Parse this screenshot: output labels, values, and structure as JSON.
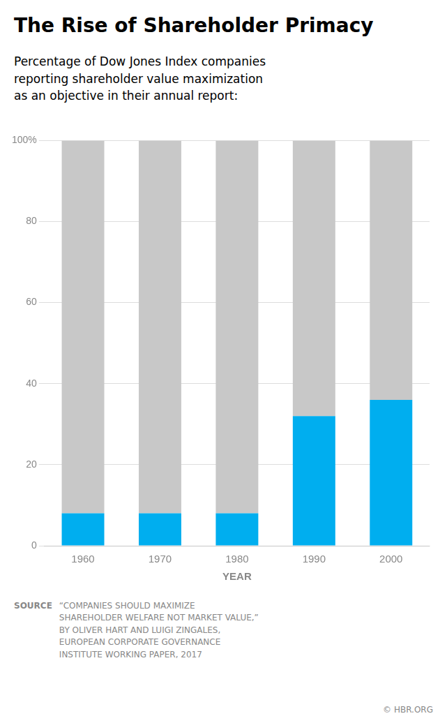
{
  "chart_data": {
    "type": "bar",
    "title": "The Rise of Shareholder Primacy",
    "subtitle": "Percentage of Dow Jones Index companies\nreporting shareholder value maximization\nas an objective in their annual report:",
    "categories": [
      "1960",
      "1970",
      "1980",
      "1990",
      "2000"
    ],
    "series": [
      {
        "color": "#00AEEF",
        "values": [
          8,
          8,
          8,
          32,
          36
        ]
      },
      {
        "color": "#C8C8C8",
        "values": [
          92,
          92,
          92,
          68,
          64
        ]
      }
    ],
    "stacked": true,
    "xlabel": "YEAR",
    "ylim": [
      0,
      100
    ],
    "yticks": [
      0,
      20,
      40,
      60,
      80,
      {
        "value": 100,
        "label": "100%"
      }
    ],
    "grid": true,
    "source_label": "SOURCE",
    "source": "“COMPANIES SHOULD MAXIMIZE\nSHAREHOLDER WELFARE NOT MARKET VALUE,”\nBY OLIVER HART AND LUIGI ZINGALES,\nEUROPEAN CORPORATE GOVERNANCE\nINSTITUTE WORKING PAPER, 2017",
    "copyright": "© HBR.ORG"
  }
}
